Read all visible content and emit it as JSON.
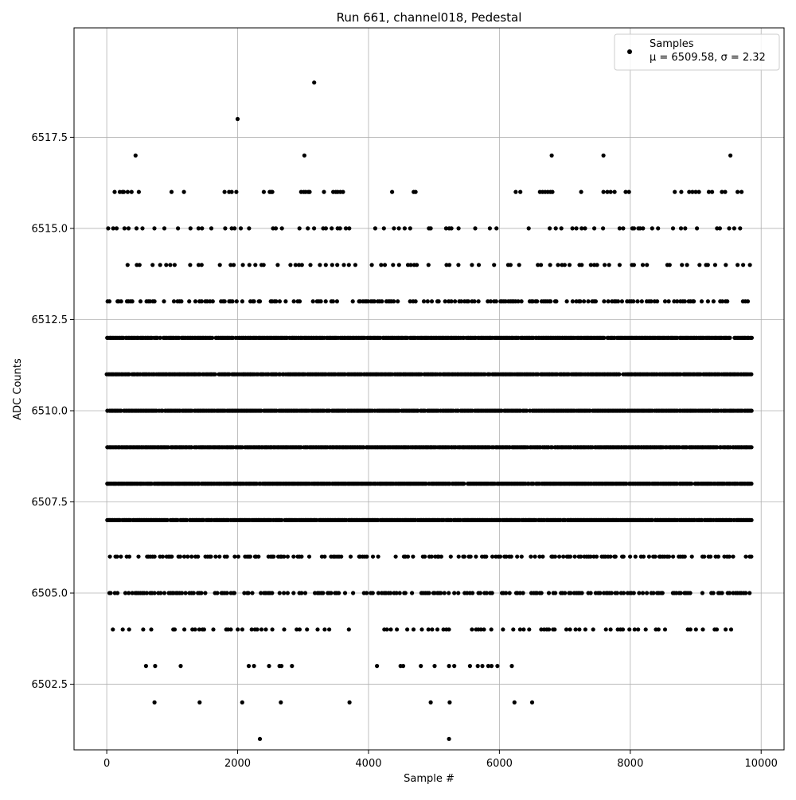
{
  "chart_data": {
    "type": "scatter",
    "title": "Run 661, channel018, Pedestal",
    "xlabel": "Sample #",
    "ylabel": "ADC Counts",
    "xlim": [
      -500,
      10350
    ],
    "ylim": [
      6500.7,
      6520.5
    ],
    "x_ticks": [
      0,
      2000,
      4000,
      6000,
      8000,
      10000
    ],
    "x_tick_labels": [
      "0",
      "2000",
      "4000",
      "6000",
      "8000",
      "10000"
    ],
    "y_ticks": [
      6502.5,
      6505.0,
      6507.5,
      6510.0,
      6512.5,
      6515.0,
      6517.5
    ],
    "y_tick_labels": [
      "6502.5",
      "6505.0",
      "6507.5",
      "6510.0",
      "6512.5",
      "6515.0",
      "6517.5"
    ],
    "grid": true,
    "legend_position": "upper right",
    "series": [
      {
        "name": "Samples",
        "stat_label": "μ = 6509.58, σ = 2.32",
        "color": "#000000",
        "marker": "circle",
        "sample_range": [
          0,
          9850
        ],
        "dense_levels": [
          6507,
          6508,
          6509,
          6510,
          6511,
          6512
        ],
        "moderate_levels": [
          6505,
          6506,
          6513
        ],
        "sparse_levels": [
          6504,
          6514,
          6515
        ],
        "level_points": [
          {
            "level": 6516,
            "x": [
              120,
              200,
              240,
              260,
              320,
              380,
              490,
              990,
              1180,
              1800,
              1870,
              1910,
              1980,
              2400,
              2490,
              2510,
              2530,
              2970,
              3010,
              3040,
              3080,
              3100,
              3320,
              3460,
              3500,
              3530,
              3570,
              3610,
              4360,
              4690,
              4720,
              6250,
              6320,
              6620,
              6660,
              6700,
              6740,
              6780,
              6810,
              7250,
              7590,
              7650,
              7700,
              7760,
              7930,
              7980,
              8680,
              8780,
              8900,
              8950,
              9000,
              9050,
              9200,
              9250,
              9400,
              9450,
              9640,
              9700
            ]
          },
          {
            "level": 6517,
            "x": [
              440,
              3020,
              6800,
              7590,
              9530
            ]
          },
          {
            "level": 6518,
            "x": [
              2000
            ]
          },
          {
            "level": 6519,
            "x": [
              3170
            ]
          },
          {
            "level": 6503,
            "x": [
              600,
              740,
              1130,
              2170,
              2250,
              2480,
              2640,
              2670,
              2830,
              4130,
              4490,
              4530,
              4800,
              5010,
              5230,
              5310,
              5550,
              5670,
              5740,
              5830,
              5880,
              5970,
              6190
            ]
          },
          {
            "level": 6502,
            "x": [
              730,
              1420,
              2070,
              2660,
              3710,
              4950,
              5240,
              6230,
              6500
            ]
          },
          {
            "level": 6501,
            "x": [
              2340,
              5230
            ]
          }
        ]
      }
    ]
  }
}
